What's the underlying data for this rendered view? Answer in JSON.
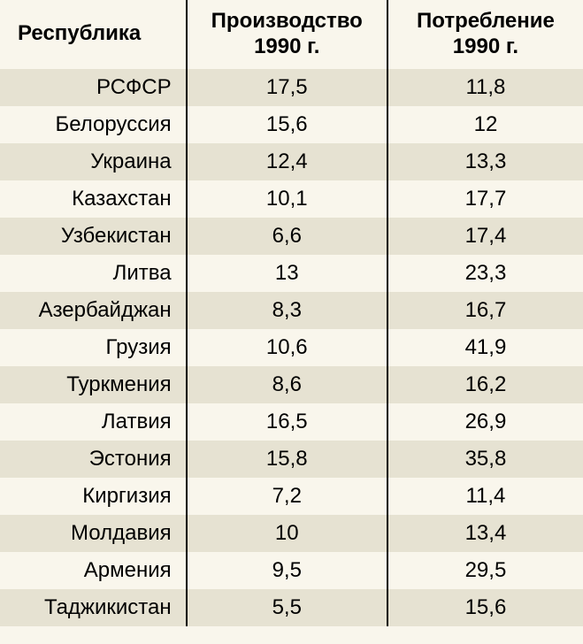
{
  "table": {
    "columns": [
      {
        "label": "Республика"
      },
      {
        "label": "Производство\n1990 г."
      },
      {
        "label": "Потребление\n1990 г."
      }
    ],
    "header_fontsize": 24,
    "cell_fontsize": 24,
    "background_color": "#f9f6ec",
    "stripe_color": "#e6e2d2",
    "border_color": "#000000",
    "text_color": "#000000",
    "rows": [
      {
        "name": "РСФСР",
        "production": "17,5",
        "consumption": "11,8"
      },
      {
        "name": "Белоруссия",
        "production": "15,6",
        "consumption": "12"
      },
      {
        "name": "Украина",
        "production": "12,4",
        "consumption": "13,3"
      },
      {
        "name": "Казахстан",
        "production": "10,1",
        "consumption": "17,7"
      },
      {
        "name": "Узбекистан",
        "production": "6,6",
        "consumption": "17,4"
      },
      {
        "name": "Литва",
        "production": "13",
        "consumption": "23,3"
      },
      {
        "name": "Азербайджан",
        "production": "8,3",
        "consumption": "16,7"
      },
      {
        "name": "Грузия",
        "production": "10,6",
        "consumption": "41,9"
      },
      {
        "name": "Туркмения",
        "production": "8,6",
        "consumption": "16,2"
      },
      {
        "name": "Латвия",
        "production": "16,5",
        "consumption": "26,9"
      },
      {
        "name": "Эстония",
        "production": "15,8",
        "consumption": "35,8"
      },
      {
        "name": "Киргизия",
        "production": "7,2",
        "consumption": "11,4"
      },
      {
        "name": "Молдавия",
        "production": "10",
        "consumption": "13,4"
      },
      {
        "name": "Армения",
        "production": "9,5",
        "consumption": "29,5"
      },
      {
        "name": "Таджикистан",
        "production": "5,5",
        "consumption": "15,6"
      }
    ]
  }
}
